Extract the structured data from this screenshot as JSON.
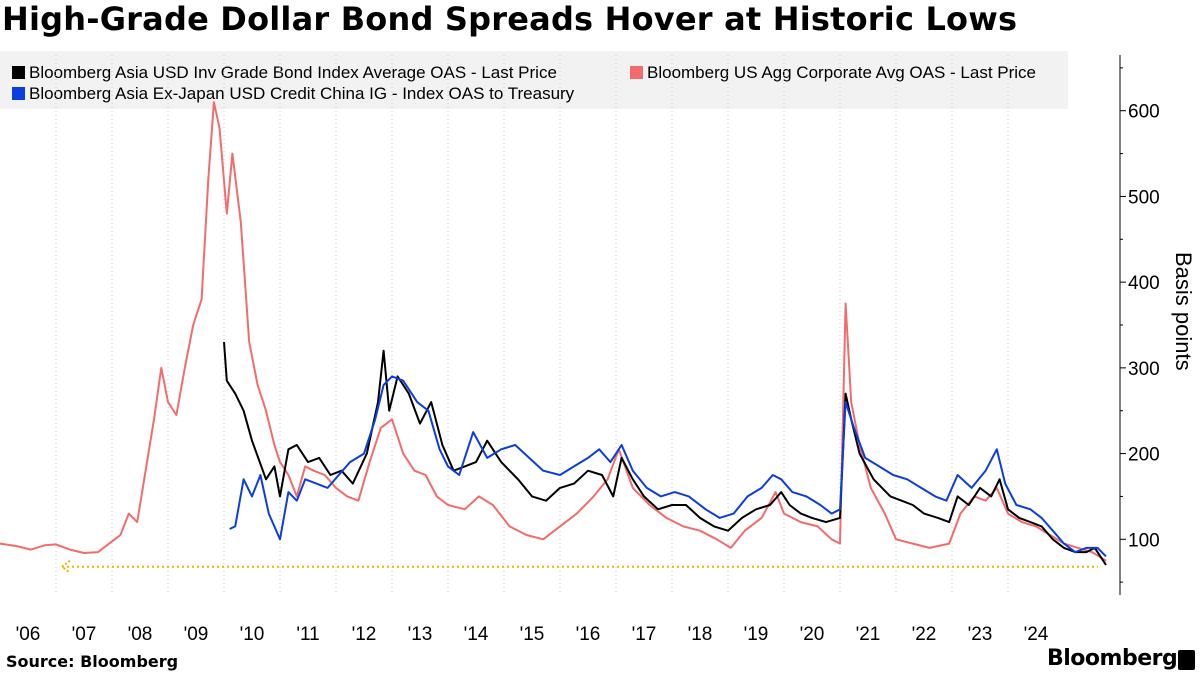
{
  "title": "High-Grade Dollar Bond Spreads Hover at Historic Lows",
  "source": "Source: Bloomberg",
  "brand": "Bloomberg",
  "chart_data": {
    "type": "line",
    "title": "High-Grade Dollar Bond Spreads Hover at Historic Lows",
    "xlabel": "",
    "ylabel": "Basis points",
    "x_tick_labels": [
      "'06",
      "'07",
      "'08",
      "'09",
      "'10",
      "'11",
      "'12",
      "'13",
      "'14",
      "'15",
      "'16",
      "'17",
      "'18",
      "'19",
      "'20",
      "'21",
      "'22",
      "'23",
      "'24"
    ],
    "y_ticks": [
      100,
      200,
      300,
      400,
      500,
      600
    ],
    "xlim": [
      2005.0,
      2025.0
    ],
    "ylim": [
      35,
      665
    ],
    "y_axis_position": "right",
    "grid": "vertical dotted",
    "legend_placement": "top-left",
    "reference_line": {
      "value": 68,
      "color": "#f2b300",
      "style": "dotted",
      "arrow": "left"
    },
    "series": [
      {
        "name": "Bloomberg Asia USD Inv Grade Bond Index Average OAS - Last Price",
        "color": "#000000",
        "points": [
          [
            2009.0,
            330
          ],
          [
            2009.05,
            285
          ],
          [
            2009.2,
            270
          ],
          [
            2009.35,
            250
          ],
          [
            2009.5,
            215
          ],
          [
            2009.75,
            170
          ],
          [
            2009.9,
            185
          ],
          [
            2010.0,
            150
          ],
          [
            2010.15,
            205
          ],
          [
            2010.3,
            210
          ],
          [
            2010.5,
            190
          ],
          [
            2010.7,
            195
          ],
          [
            2010.9,
            175
          ],
          [
            2011.1,
            180
          ],
          [
            2011.3,
            165
          ],
          [
            2011.55,
            200
          ],
          [
            2011.75,
            260
          ],
          [
            2011.85,
            320
          ],
          [
            2011.95,
            250
          ],
          [
            2012.1,
            290
          ],
          [
            2012.3,
            270
          ],
          [
            2012.5,
            235
          ],
          [
            2012.7,
            260
          ],
          [
            2012.9,
            210
          ],
          [
            2013.1,
            180
          ],
          [
            2013.3,
            185
          ],
          [
            2013.5,
            190
          ],
          [
            2013.7,
            215
          ],
          [
            2013.95,
            190
          ],
          [
            2014.25,
            170
          ],
          [
            2014.5,
            150
          ],
          [
            2014.75,
            145
          ],
          [
            2015.0,
            160
          ],
          [
            2015.25,
            165
          ],
          [
            2015.5,
            180
          ],
          [
            2015.75,
            175
          ],
          [
            2015.95,
            150
          ],
          [
            2016.1,
            195
          ],
          [
            2016.3,
            170
          ],
          [
            2016.5,
            150
          ],
          [
            2016.75,
            135
          ],
          [
            2017.0,
            140
          ],
          [
            2017.25,
            140
          ],
          [
            2017.5,
            125
          ],
          [
            2017.75,
            115
          ],
          [
            2018.0,
            110
          ],
          [
            2018.25,
            125
          ],
          [
            2018.5,
            135
          ],
          [
            2018.75,
            140
          ],
          [
            2018.95,
            155
          ],
          [
            2019.1,
            140
          ],
          [
            2019.3,
            130
          ],
          [
            2019.5,
            125
          ],
          [
            2019.75,
            120
          ],
          [
            2020.0,
            125
          ],
          [
            2020.1,
            270
          ],
          [
            2020.2,
            240
          ],
          [
            2020.35,
            200
          ],
          [
            2020.6,
            170
          ],
          [
            2020.9,
            150
          ],
          [
            2021.1,
            145
          ],
          [
            2021.3,
            140
          ],
          [
            2021.5,
            130
          ],
          [
            2021.75,
            125
          ],
          [
            2021.95,
            120
          ],
          [
            2022.1,
            150
          ],
          [
            2022.3,
            140
          ],
          [
            2022.5,
            160
          ],
          [
            2022.7,
            150
          ],
          [
            2022.85,
            170
          ],
          [
            2023.0,
            135
          ],
          [
            2023.2,
            125
          ],
          [
            2023.4,
            120
          ],
          [
            2023.6,
            115
          ],
          [
            2023.8,
            100
          ],
          [
            2024.0,
            90
          ],
          [
            2024.2,
            85
          ],
          [
            2024.4,
            85
          ],
          [
            2024.55,
            90
          ],
          [
            2024.65,
            80
          ],
          [
            2024.75,
            70
          ]
        ]
      },
      {
        "name": "Bloomberg US Agg Corporate Avg OAS - Last Price",
        "color": "#f36b6b",
        "points": [
          [
            2005.0,
            95
          ],
          [
            2005.3,
            92
          ],
          [
            2005.55,
            88
          ],
          [
            2005.8,
            93
          ],
          [
            2006.0,
            94
          ],
          [
            2006.25,
            88
          ],
          [
            2006.5,
            84
          ],
          [
            2006.75,
            85
          ],
          [
            2006.95,
            95
          ],
          [
            2007.15,
            105
          ],
          [
            2007.3,
            130
          ],
          [
            2007.45,
            120
          ],
          [
            2007.6,
            180
          ],
          [
            2007.75,
            240
          ],
          [
            2007.88,
            300
          ],
          [
            2008.0,
            260
          ],
          [
            2008.15,
            245
          ],
          [
            2008.3,
            300
          ],
          [
            2008.45,
            350
          ],
          [
            2008.6,
            380
          ],
          [
            2008.72,
            520
          ],
          [
            2008.82,
            610
          ],
          [
            2008.92,
            580
          ],
          [
            2009.05,
            480
          ],
          [
            2009.15,
            550
          ],
          [
            2009.3,
            470
          ],
          [
            2009.45,
            330
          ],
          [
            2009.6,
            280
          ],
          [
            2009.75,
            250
          ],
          [
            2009.9,
            210
          ],
          [
            2010.0,
            190
          ],
          [
            2010.15,
            175
          ],
          [
            2010.3,
            150
          ],
          [
            2010.45,
            185
          ],
          [
            2010.6,
            180
          ],
          [
            2010.8,
            175
          ],
          [
            2011.0,
            160
          ],
          [
            2011.2,
            150
          ],
          [
            2011.4,
            145
          ],
          [
            2011.6,
            190
          ],
          [
            2011.8,
            230
          ],
          [
            2012.0,
            240
          ],
          [
            2012.2,
            200
          ],
          [
            2012.4,
            180
          ],
          [
            2012.6,
            175
          ],
          [
            2012.8,
            150
          ],
          [
            2013.0,
            140
          ],
          [
            2013.3,
            135
          ],
          [
            2013.55,
            150
          ],
          [
            2013.8,
            140
          ],
          [
            2014.1,
            115
          ],
          [
            2014.4,
            105
          ],
          [
            2014.7,
            100
          ],
          [
            2015.0,
            115
          ],
          [
            2015.3,
            130
          ],
          [
            2015.6,
            150
          ],
          [
            2015.85,
            170
          ],
          [
            2016.05,
            205
          ],
          [
            2016.3,
            160
          ],
          [
            2016.6,
            140
          ],
          [
            2016.9,
            125
          ],
          [
            2017.2,
            115
          ],
          [
            2017.5,
            110
          ],
          [
            2017.8,
            100
          ],
          [
            2018.05,
            90
          ],
          [
            2018.3,
            110
          ],
          [
            2018.6,
            125
          ],
          [
            2018.85,
            155
          ],
          [
            2019.0,
            130
          ],
          [
            2019.3,
            120
          ],
          [
            2019.6,
            115
          ],
          [
            2019.85,
            100
          ],
          [
            2020.0,
            95
          ],
          [
            2020.1,
            375
          ],
          [
            2020.2,
            260
          ],
          [
            2020.35,
            210
          ],
          [
            2020.55,
            160
          ],
          [
            2020.8,
            130
          ],
          [
            2021.0,
            100
          ],
          [
            2021.3,
            95
          ],
          [
            2021.6,
            90
          ],
          [
            2021.95,
            95
          ],
          [
            2022.15,
            130
          ],
          [
            2022.4,
            150
          ],
          [
            2022.6,
            145
          ],
          [
            2022.8,
            160
          ],
          [
            2023.0,
            130
          ],
          [
            2023.25,
            120
          ],
          [
            2023.5,
            115
          ],
          [
            2023.75,
            105
          ],
          [
            2024.0,
            95
          ],
          [
            2024.25,
            90
          ],
          [
            2024.5,
            85
          ],
          [
            2024.75,
            75
          ]
        ]
      },
      {
        "name": "Bloomberg Asia Ex-Japan USD Credit China IG - Index OAS to Treasury",
        "color": "#0b3ee0",
        "points": [
          [
            2009.1,
            112
          ],
          [
            2009.2,
            115
          ],
          [
            2009.35,
            170
          ],
          [
            2009.5,
            150
          ],
          [
            2009.65,
            175
          ],
          [
            2009.8,
            130
          ],
          [
            2010.0,
            100
          ],
          [
            2010.15,
            155
          ],
          [
            2010.3,
            145
          ],
          [
            2010.45,
            170
          ],
          [
            2010.65,
            165
          ],
          [
            2010.85,
            160
          ],
          [
            2011.05,
            175
          ],
          [
            2011.25,
            190
          ],
          [
            2011.5,
            200
          ],
          [
            2011.7,
            240
          ],
          [
            2011.85,
            280
          ],
          [
            2012.0,
            290
          ],
          [
            2012.2,
            285
          ],
          [
            2012.45,
            260
          ],
          [
            2012.65,
            250
          ],
          [
            2012.85,
            205
          ],
          [
            2013.0,
            185
          ],
          [
            2013.2,
            175
          ],
          [
            2013.45,
            225
          ],
          [
            2013.7,
            195
          ],
          [
            2013.95,
            205
          ],
          [
            2014.2,
            210
          ],
          [
            2014.45,
            195
          ],
          [
            2014.7,
            180
          ],
          [
            2015.0,
            175
          ],
          [
            2015.25,
            185
          ],
          [
            2015.5,
            195
          ],
          [
            2015.7,
            205
          ],
          [
            2015.9,
            190
          ],
          [
            2016.1,
            210
          ],
          [
            2016.3,
            180
          ],
          [
            2016.55,
            160
          ],
          [
            2016.8,
            150
          ],
          [
            2017.05,
            155
          ],
          [
            2017.3,
            150
          ],
          [
            2017.6,
            135
          ],
          [
            2017.85,
            125
          ],
          [
            2018.1,
            130
          ],
          [
            2018.35,
            150
          ],
          [
            2018.6,
            160
          ],
          [
            2018.8,
            175
          ],
          [
            2018.95,
            170
          ],
          [
            2019.15,
            155
          ],
          [
            2019.4,
            150
          ],
          [
            2019.65,
            140
          ],
          [
            2019.85,
            130
          ],
          [
            2020.0,
            135
          ],
          [
            2020.1,
            260
          ],
          [
            2020.25,
            230
          ],
          [
            2020.45,
            195
          ],
          [
            2020.7,
            185
          ],
          [
            2020.95,
            175
          ],
          [
            2021.2,
            170
          ],
          [
            2021.45,
            160
          ],
          [
            2021.7,
            150
          ],
          [
            2021.9,
            145
          ],
          [
            2022.1,
            175
          ],
          [
            2022.35,
            160
          ],
          [
            2022.6,
            180
          ],
          [
            2022.8,
            205
          ],
          [
            2022.95,
            165
          ],
          [
            2023.15,
            140
          ],
          [
            2023.4,
            135
          ],
          [
            2023.6,
            125
          ],
          [
            2023.8,
            110
          ],
          [
            2024.0,
            95
          ],
          [
            2024.2,
            85
          ],
          [
            2024.4,
            90
          ],
          [
            2024.6,
            90
          ],
          [
            2024.75,
            80
          ]
        ]
      }
    ]
  }
}
